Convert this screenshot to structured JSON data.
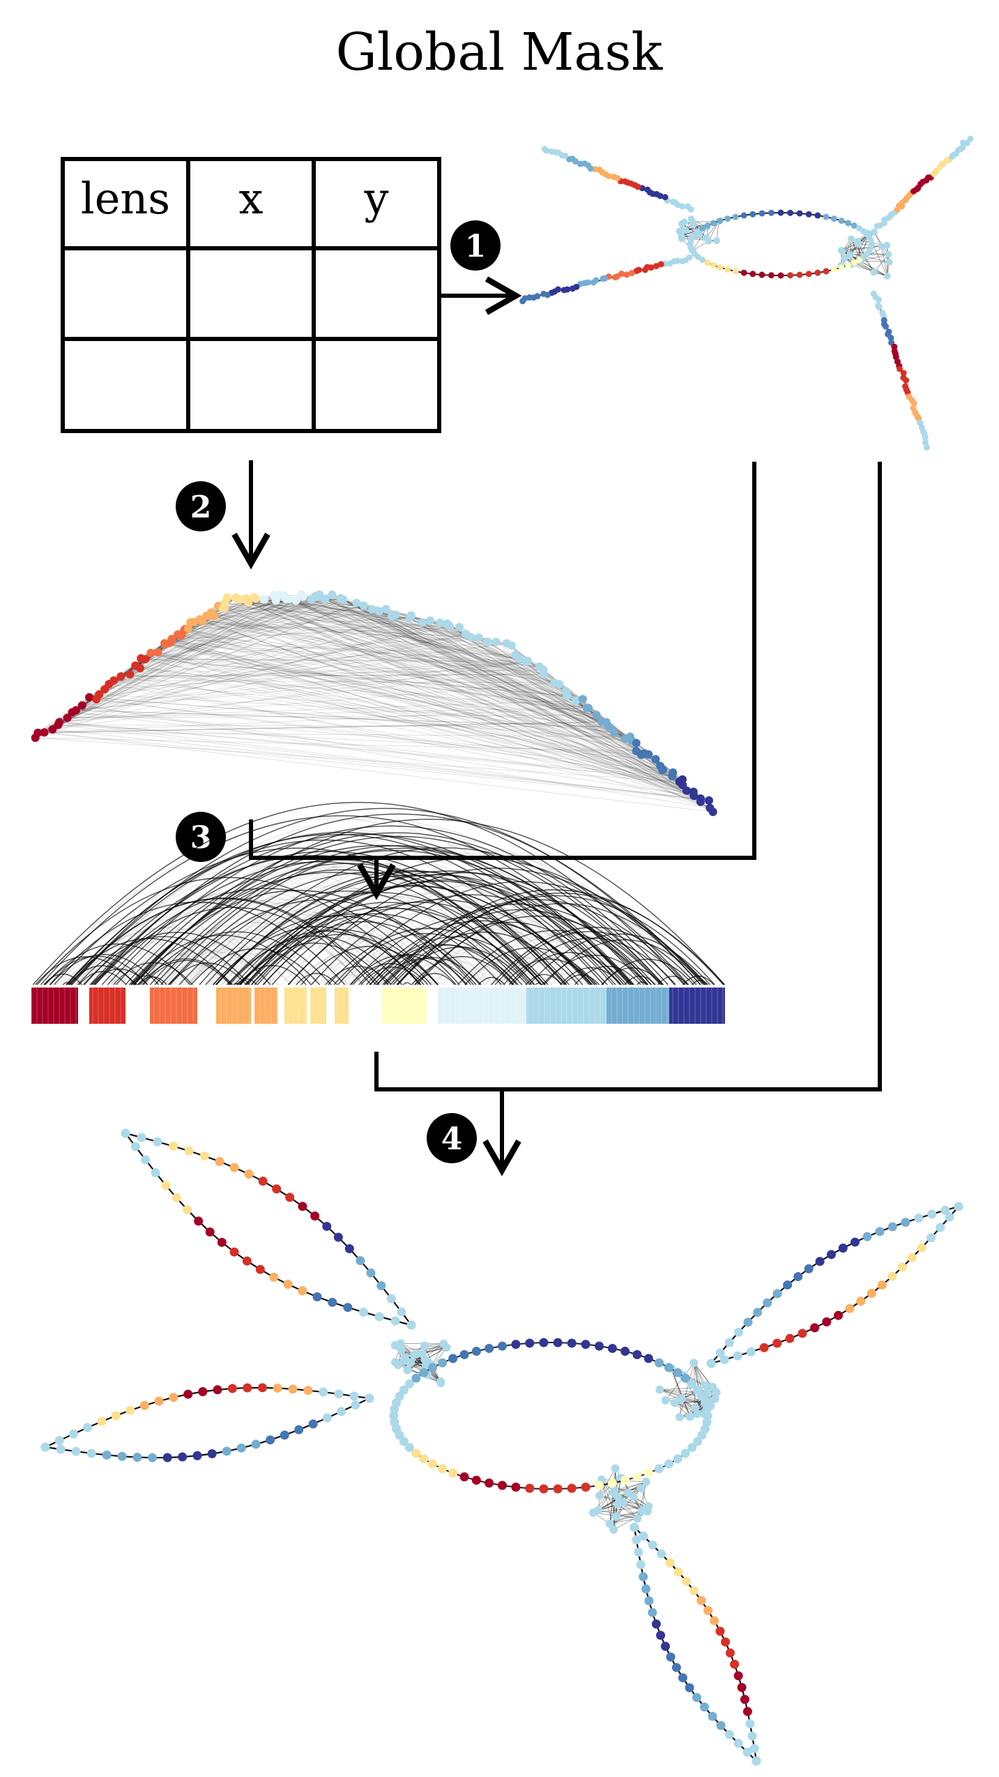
{
  "title": "Global Mask",
  "table": {
    "headers": [
      "lens",
      "x",
      "y"
    ],
    "empty_rows": 2
  },
  "steps": [
    {
      "id": "step-1",
      "label": "1"
    },
    {
      "id": "step-2",
      "label": "2"
    },
    {
      "id": "step-3",
      "label": "3"
    },
    {
      "id": "step-4",
      "label": "4"
    }
  ],
  "palette": {
    "dark_red": "#a50026",
    "red": "#d73027",
    "orange_red": "#f46d43",
    "orange": "#fdae61",
    "light_yellow": "#fee090",
    "pale_yellow": "#ffffbf",
    "pale_blue": "#e0f3f8",
    "light_blue": "#abd9e9",
    "blue": "#74add1",
    "mid_blue": "#4575b4",
    "dark_blue": "#313695",
    "edge": "#000000",
    "node_default": "#9ecae1"
  }
}
